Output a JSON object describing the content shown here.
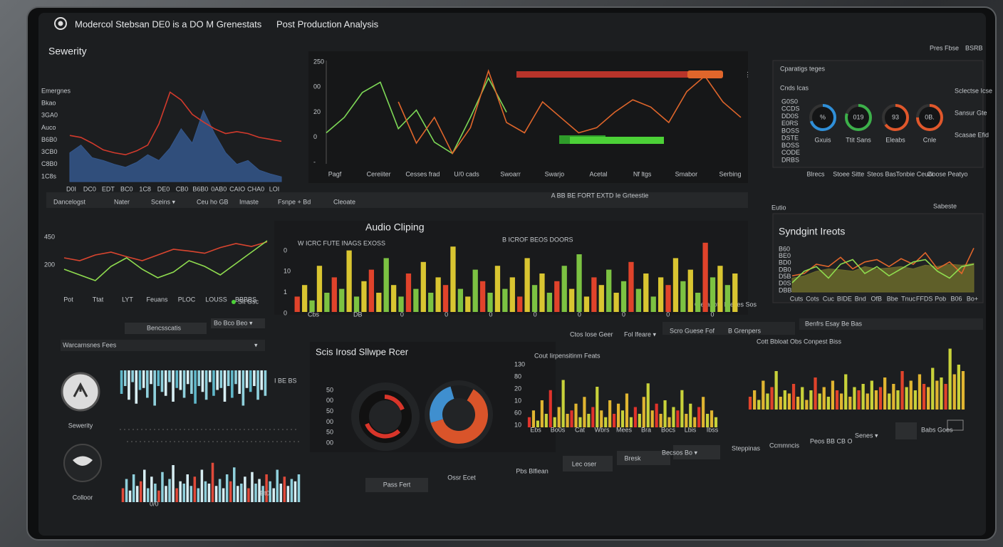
{
  "header": {
    "title": "Modercol Stebsan DE0 is a DO M Grenestats",
    "subtitle": "Post Production Analysis",
    "controls": "Pres Fbse",
    "badge": "BSRB"
  },
  "severity": {
    "title": "Sewerity",
    "y_labels": [
      "Emergnes",
      "Bkao",
      "3GA0",
      "Auco",
      "B6B0",
      "3CB0",
      "C8B0",
      "1C8s"
    ],
    "x_labels": [
      "D0I",
      "DC0",
      "EDT",
      "BC0",
      "1C8",
      "DE0",
      "CB0",
      "B6B0",
      "0AB0",
      "CAIO",
      "CHA0",
      "LOI"
    ],
    "chart": {
      "ylim": [
        0,
        100
      ],
      "series": [
        {
          "type": "area",
          "color": "#34578c",
          "values": [
            30,
            38,
            25,
            22,
            18,
            15,
            20,
            28,
            22,
            35,
            55,
            40,
            74,
            50,
            30,
            18,
            22,
            12,
            8,
            5
          ]
        },
        {
          "type": "line",
          "color": "#d23a2c",
          "values": [
            48,
            46,
            40,
            33,
            30,
            28,
            32,
            38,
            60,
            93,
            85,
            70,
            62,
            55,
            50,
            52,
            50,
            46,
            44,
            42
          ]
        }
      ]
    }
  },
  "trend": {
    "y_labels": [
      "250",
      "00",
      "20",
      "0",
      "-"
    ],
    "x_labels": [
      "Pagf",
      "Cereiiter",
      "Cesses frad",
      "U/0 cads",
      "Swoarr",
      "Swarjo",
      "Acetal",
      "Nf ltgs",
      "Smabor",
      "Serbing"
    ],
    "chart": {
      "ylim": [
        0,
        100
      ],
      "series": [
        {
          "type": "line",
          "color": "#7ed957",
          "values": [
            30,
            45,
            69,
            79,
            34,
            52,
            21,
            10,
            45,
            83,
            50,
            null,
            null,
            null,
            null,
            null,
            null,
            null,
            null,
            null,
            null,
            null,
            null,
            null
          ]
        },
        {
          "type": "line",
          "color": "#e0662b",
          "values": [
            null,
            null,
            null,
            null,
            60,
            20,
            45,
            10,
            35,
            90,
            40,
            30,
            60,
            45,
            30,
            35,
            50,
            62,
            55,
            40,
            70,
            85,
            60,
            45
          ]
        }
      ]
    }
  },
  "gauges": {
    "title": "Cparatigs teges",
    "legend_title": "Cnds Icas",
    "list": [
      "G0S0",
      "CCDS",
      "DD0S",
      "E0RS",
      "BOSS",
      "DSTE",
      "BOSS",
      "CODE",
      "DRBS"
    ],
    "labels": [
      "%",
      "019",
      "93",
      "0B."
    ],
    "captions": [
      "Gxuis",
      "Ttit Sans",
      "Eleabs",
      "Cnle"
    ],
    "values": [
      70,
      80,
      65,
      75
    ],
    "colors": [
      "#2f8fd8",
      "#3cb04a",
      "#e0572b",
      "#e0572b"
    ],
    "side": [
      "Sclectse Icse",
      "Sansur Gte",
      "Scasae Efid"
    ],
    "footer": [
      "Blrecs",
      "Stoee Sitte",
      "Steos Bas",
      "Tonbie Ceuci",
      "Goose Peatyo"
    ]
  },
  "toolbar": {
    "items": [
      "Dancelogst",
      "Nater",
      "Sceins ▾",
      "Ceu ho GB",
      "Imaste",
      "Fsnpe + Bd",
      "Cleoate"
    ],
    "center": "A BB BE FORT EXTD Ie Grteestie"
  },
  "mid": {
    "y_labels": [
      "450",
      "200"
    ],
    "x_labels": [
      "Pot",
      "Ttat",
      "LYT",
      "Feuans",
      "PLOC",
      "LOUSS",
      "BBBBS"
    ],
    "legend": "Sit Gsc",
    "controls": [
      "Bencsscatis",
      "Bo Bco Beo ▾",
      "Warcarnsnes Fees"
    ],
    "chart": {
      "ylim": [
        0,
        100
      ],
      "series": [
        {
          "type": "line",
          "color": "#d9452f",
          "values": [
            60,
            55,
            65,
            70,
            62,
            55,
            65,
            75,
            72,
            68,
            78,
            85,
            80,
            88
          ]
        },
        {
          "type": "line",
          "color": "#8fdc4f",
          "values": [
            40,
            30,
            20,
            45,
            60,
            40,
            25,
            35,
            55,
            45,
            30,
            50,
            70,
            90
          ]
        }
      ]
    }
  },
  "clipping": {
    "title": "Audio Cliping",
    "legend": "W ICRC FUTE INAGS EXOSS",
    "legend2": "B ICROF BEOS DOORS",
    "y_labels": [
      "0",
      "10",
      "1",
      "0"
    ],
    "x_labels": [
      "Cbs",
      "DB",
      "0",
      "0",
      "0",
      "0",
      "0",
      "0",
      "0",
      "0"
    ],
    "footer": "Cleraeote Frexes Sos",
    "chart": {
      "ylim": [
        0,
        100
      ],
      "series": [
        {
          "type": "bar",
          "palette": [
            "#7cc242",
            "#d9c531",
            "#e0432b"
          ],
          "values": [
            20,
            35,
            15,
            60,
            25,
            45,
            30,
            80,
            20,
            40,
            55,
            25,
            70,
            35,
            20,
            50,
            30,
            65,
            25,
            45,
            35,
            85,
            30,
            20,
            55,
            40,
            25,
            60,
            30,
            45,
            20,
            70,
            35,
            50,
            25,
            40,
            60,
            30,
            75,
            20,
            45,
            35,
            55,
            25,
            40,
            65,
            30,
            50,
            20,
            45,
            35,
            70,
            40,
            55,
            25,
            90,
            45,
            60,
            35,
            50
          ]
        }
      ]
    }
  },
  "sync": {
    "section": "Eutio",
    "badge": "Sabeste",
    "title": "Syndgint Ireots",
    "y_labels": [
      "B60",
      "BE0",
      "BD0",
      "DB0",
      "D5B",
      "D0S",
      "DBB"
    ],
    "x_labels": [
      "Cuts",
      "Cots",
      "Cuc",
      "BIDE",
      "Bnd",
      "OfB",
      "Bbe",
      "Tnuc",
      "FFDS",
      "Pob",
      "B06",
      "Bo+"
    ],
    "control": "Benfrs Esay Be Bas",
    "chart": {
      "ylim": [
        0,
        100
      ],
      "series": [
        {
          "type": "area",
          "color": "#6b6a2a",
          "values": [
            30,
            35,
            45,
            50,
            48,
            45,
            55,
            50,
            52,
            55,
            50,
            58,
            55,
            60,
            58,
            62
          ]
        },
        {
          "type": "line",
          "color": "#e0662b",
          "values": [
            35,
            40,
            60,
            55,
            75,
            50,
            65,
            70,
            55,
            72,
            60,
            85,
            50,
            65,
            40,
            95
          ]
        },
        {
          "type": "line",
          "color": "#8fdc4f",
          "values": [
            20,
            45,
            55,
            30,
            60,
            70,
            40,
            55,
            35,
            50,
            65,
            70,
            45,
            30,
            55,
            60
          ]
        }
      ]
    }
  },
  "sidebar": {
    "items": [
      "Sewerity",
      "Colloor"
    ]
  },
  "waves": {
    "legend": "I BE BS",
    "x_labels": [
      "0/0",
      "Bt0"
    ],
    "top": {
      "ylim": [
        0,
        100
      ],
      "inverted": true,
      "series": [
        {
          "type": "bar",
          "palette": [
            "#d7eef3",
            "#8fd0dc",
            "#5fb7c9"
          ],
          "values": [
            60,
            40,
            75,
            30,
            85,
            50,
            45,
            70,
            35,
            90,
            40,
            55,
            65,
            30,
            80,
            45,
            50,
            70,
            35,
            60,
            85,
            40,
            55,
            75,
            30,
            65,
            50,
            45,
            80,
            40,
            70,
            35,
            60,
            90,
            45,
            55,
            40,
            75,
            50,
            65
          ]
        }
      ]
    },
    "bottom": {
      "ylim": [
        0,
        100
      ],
      "series": [
        {
          "type": "bar",
          "palette": [
            "#d7eef3",
            "#8fd0dc",
            "#e04a3a"
          ],
          "values": [
            30,
            50,
            25,
            60,
            35,
            45,
            70,
            30,
            55,
            40,
            25,
            65,
            35,
            50,
            80,
            30,
            45,
            40,
            60,
            35,
            55,
            30,
            70,
            45,
            40,
            85,
            35,
            50,
            30,
            60,
            45,
            75,
            35,
            40,
            55,
            30,
            65,
            40,
            50,
            35,
            60,
            45,
            30,
            70,
            40,
            55,
            35,
            50,
            45,
            60
          ]
        }
      ]
    }
  },
  "shape": {
    "title": "Scis Irosd Sllwpe Rcer",
    "y_labels": [
      "50",
      "00",
      "50",
      "00",
      "50",
      "00"
    ],
    "values": [
      62,
      25,
      13
    ],
    "colors": [
      "#d9542a",
      "#3f8fcf",
      "#1c1e20"
    ]
  },
  "bars": {
    "header": [
      "Ctos Iose Geer",
      "Fol Ifeare ▾",
      "Scro Guese Fof",
      "B Grenpers"
    ],
    "a": {
      "title": "Cout Iirpensitinm Feats",
      "y_labels": [
        "130",
        "80",
        "20",
        "10",
        "60",
        "10"
      ],
      "x_labels": [
        "Ebs",
        "Bo0s",
        "Cat",
        "Wbrs",
        "Mees",
        "Bra",
        "Bocs",
        "Lbis",
        "Ibss"
      ],
      "chart": {
        "ylim": [
          0,
          100
        ],
        "series": [
          {
            "type": "bar",
            "palette": [
              "#c8d23a",
              "#e0b531",
              "#e0332b"
            ],
            "values": [
              15,
              25,
              10,
              40,
              20,
              55,
              15,
              30,
              70,
              20,
              25,
              35,
              15,
              45,
              20,
              30,
              60,
              25,
              15,
              40,
              20,
              35,
              25,
              50,
              15,
              30,
              20,
              45,
              65,
              25,
              35,
              20,
              40,
              15,
              30,
              25,
              55,
              20,
              35,
              15,
              30,
              45,
              20,
              25,
              15
            ]
          }
        ]
      }
    },
    "b": {
      "title": "Cott Bbloat Obs Conpest Biss",
      "chart": {
        "ylim": [
          0,
          100
        ],
        "series": [
          {
            "type": "bar",
            "palette": [
              "#c8d23a",
              "#e0b531",
              "#e0432b"
            ],
            "values": [
              20,
              30,
              15,
              45,
              25,
              35,
              60,
              20,
              30,
              25,
              40,
              20,
              35,
              15,
              30,
              50,
              25,
              35,
              20,
              45,
              30,
              25,
              55,
              20,
              35,
              30,
              40,
              25,
              45,
              30,
              35,
              50,
              25,
              40,
              30,
              60,
              35,
              45,
              30,
              55,
              40,
              35,
              65,
              45,
              50,
              40,
              95,
              55,
              70,
              60
            ]
          }
        ]
      }
    }
  },
  "bottom": {
    "buttons": [
      "Pass Fert",
      "Ossr Ecet",
      "Pbs Blfiean",
      "Lec oser",
      "Bresk",
      "Becsos Bo ▾",
      "Steppinas",
      "Ccmmncis",
      "Peos BB CB O",
      "Senes ▾",
      "Babs Goes"
    ]
  }
}
